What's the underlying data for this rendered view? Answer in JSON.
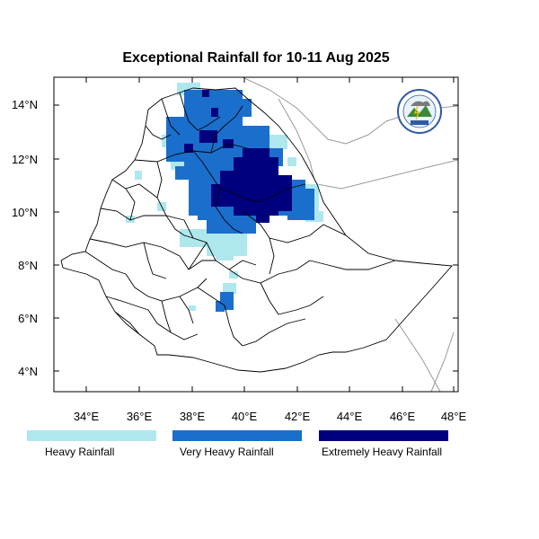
{
  "title": "Exceptional Rainfall for 10-11 Aug 2025",
  "axes": {
    "x_ticks": [
      "34°E",
      "36°E",
      "38°E",
      "40°E",
      "42°E",
      "44°E",
      "46°E",
      "48°E"
    ],
    "y_ticks": [
      "14°N",
      "12°N",
      "10°N",
      "8°N",
      "6°N",
      "4°N"
    ]
  },
  "legend": [
    {
      "label": "Heavy Rainfall",
      "color": "#aee8ee"
    },
    {
      "label": "Very Heavy Rainfall",
      "color": "#1a6fcc"
    },
    {
      "label": "Extremely Heavy Rainfall",
      "color": "#00007f"
    }
  ],
  "colors": {
    "heavy": "#aee8ee",
    "very_heavy": "#1a6fcc",
    "extreme": "#00007f",
    "boundary": "#000000",
    "neighbor": "#9a9a9a"
  },
  "logo": {
    "icon": "meteorology-agency-logo-icon",
    "text": "ETHIOPIAN METEOROLOGY INSTITUTE"
  }
}
